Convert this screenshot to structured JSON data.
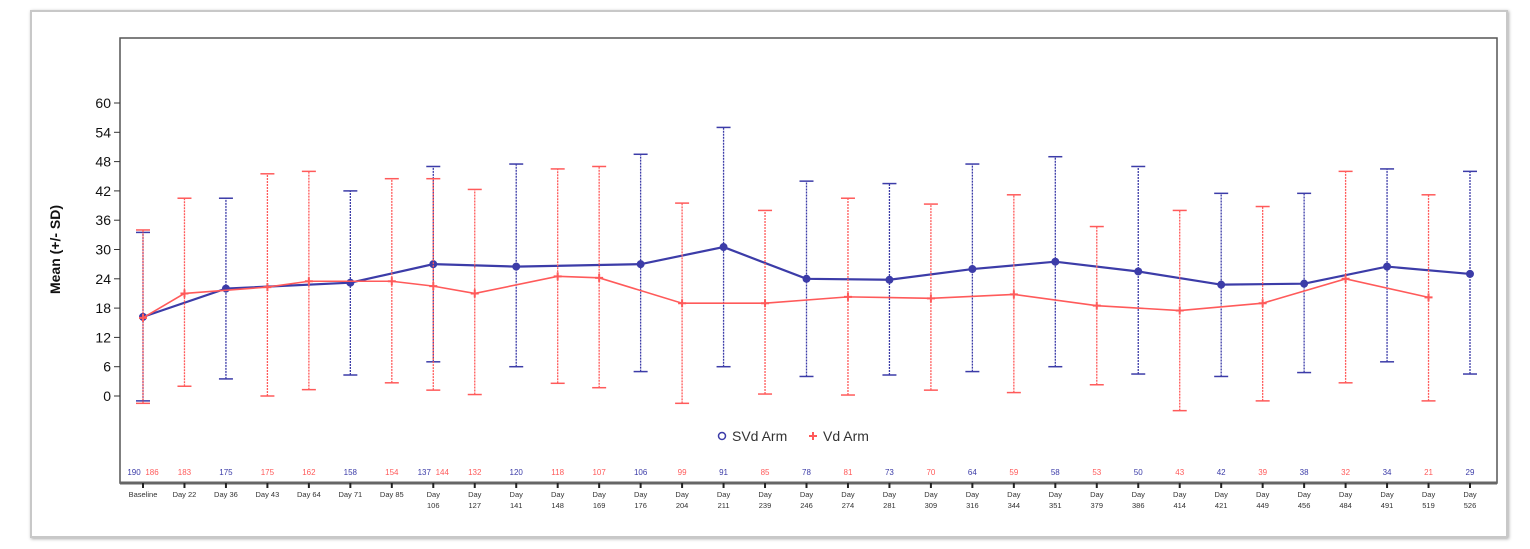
{
  "chart_data": {
    "type": "line",
    "ylabel": "Mean (+/- SD)",
    "ylim": [
      0,
      60
    ],
    "yticks": [
      0,
      6,
      12,
      18,
      24,
      30,
      36,
      42,
      48,
      54,
      60
    ],
    "grid": false,
    "legend_position": "bottom-center",
    "categories": [
      "Baseline",
      "Day 22",
      "Day 36",
      "Day 43",
      "Day 64",
      "Day 71",
      "Day 85",
      "Day 106",
      "Day 127",
      "Day 141",
      "Day 148",
      "Day 169",
      "Day 176",
      "Day 204",
      "Day 211",
      "Day 239",
      "Day 246",
      "Day 274",
      "Day 281",
      "Day 309",
      "Day 316",
      "Day 344",
      "Day 351",
      "Day 379",
      "Day 386",
      "Day 414",
      "Day 421",
      "Day 449",
      "Day 456",
      "Day 484",
      "Day 491",
      "Day 519",
      "Day 526"
    ],
    "series": [
      {
        "name": "SVd Arm",
        "color": "#3c3ca8",
        "marker": "circle",
        "points": [
          {
            "x": "Baseline",
            "mean": 16.2,
            "low": -1,
            "high": 33.5,
            "n": "190"
          },
          {
            "x": "Day 36",
            "mean": 22,
            "low": 3.5,
            "high": 40.5,
            "n": "175"
          },
          {
            "x": "Day 71",
            "mean": 23.2,
            "low": 4.3,
            "high": 42,
            "n": "158"
          },
          {
            "x": "Day 106",
            "mean": 27,
            "low": 7,
            "high": 47,
            "n": "137"
          },
          {
            "x": "Day 141",
            "mean": 26.5,
            "low": 6,
            "high": 47.5,
            "n": "120"
          },
          {
            "x": "Day 176",
            "mean": 27,
            "low": 5,
            "high": 49.5,
            "n": "106"
          },
          {
            "x": "Day 211",
            "mean": 30.5,
            "low": 6,
            "high": 55,
            "n": "91"
          },
          {
            "x": "Day 246",
            "mean": 24,
            "low": 4,
            "high": 44,
            "n": "78"
          },
          {
            "x": "Day 281",
            "mean": 23.8,
            "low": 4.3,
            "high": 43.5,
            "n": "73"
          },
          {
            "x": "Day 316",
            "mean": 26,
            "low": 5,
            "high": 47.5,
            "n": "64"
          },
          {
            "x": "Day 351",
            "mean": 27.5,
            "low": 6,
            "high": 49,
            "n": "58"
          },
          {
            "x": "Day 386",
            "mean": 25.5,
            "low": 4.5,
            "high": 47,
            "n": "50"
          },
          {
            "x": "Day 421",
            "mean": 22.8,
            "low": 4,
            "high": 41.5,
            "n": "42"
          },
          {
            "x": "Day 456",
            "mean": 23,
            "low": 4.8,
            "high": 41.5,
            "n": "38"
          },
          {
            "x": "Day 491",
            "mean": 26.5,
            "low": 7,
            "high": 46.5,
            "n": "34"
          },
          {
            "x": "Day 526",
            "mean": 25,
            "low": 4.5,
            "high": 46,
            "n": "29"
          }
        ]
      },
      {
        "name": "Vd Arm",
        "color": "#ff5a5a",
        "marker": "plus",
        "points": [
          {
            "x": "Baseline",
            "mean": 16,
            "low": -1.5,
            "high": 34,
            "n": "186"
          },
          {
            "x": "Day 22",
            "mean": 21,
            "low": 2,
            "high": 40.5,
            "n": "183"
          },
          {
            "x": "Day 43",
            "mean": 22.3,
            "low": 0,
            "high": 45.5,
            "n": "175"
          },
          {
            "x": "Day 64",
            "mean": 23.5,
            "low": 1.3,
            "high": 46,
            "n": "162"
          },
          {
            "x": "Day 85",
            "mean": 23.5,
            "low": 2.7,
            "high": 44.5,
            "n": "154"
          },
          {
            "x": "Day 106",
            "mean": 22.5,
            "low": 1.2,
            "high": 44.5,
            "n": "144"
          },
          {
            "x": "Day 127",
            "mean": 21,
            "low": 0.3,
            "high": 42.3,
            "n": "132"
          },
          {
            "x": "Day 148",
            "mean": 24.5,
            "low": 2.6,
            "high": 46.5,
            "n": "118"
          },
          {
            "x": "Day 169",
            "mean": 24.2,
            "low": 1.7,
            "high": 47,
            "n": "107"
          },
          {
            "x": "Day 204",
            "mean": 19,
            "low": -1.5,
            "high": 39.5,
            "n": "99"
          },
          {
            "x": "Day 239",
            "mean": 19,
            "low": 0.4,
            "high": 38,
            "n": "85"
          },
          {
            "x": "Day 274",
            "mean": 20.3,
            "low": 0.2,
            "high": 40.5,
            "n": "81"
          },
          {
            "x": "Day 309",
            "mean": 20,
            "low": 1.2,
            "high": 39.3,
            "n": "70"
          },
          {
            "x": "Day 344",
            "mean": 20.8,
            "low": 0.7,
            "high": 41.2,
            "n": "59"
          },
          {
            "x": "Day 379",
            "mean": 18.5,
            "low": 2.3,
            "high": 34.7,
            "n": "53"
          },
          {
            "x": "Day 414",
            "mean": 17.5,
            "low": -3,
            "high": 38,
            "n": "43"
          },
          {
            "x": "Day 449",
            "mean": 19,
            "low": -1,
            "high": 38.8,
            "n": "39"
          },
          {
            "x": "Day 484",
            "mean": 24,
            "low": 2.7,
            "high": 46,
            "n": "32"
          },
          {
            "x": "Day 519",
            "mean": 20.2,
            "low": -1,
            "high": 41.2,
            "n": "21"
          }
        ]
      }
    ]
  }
}
